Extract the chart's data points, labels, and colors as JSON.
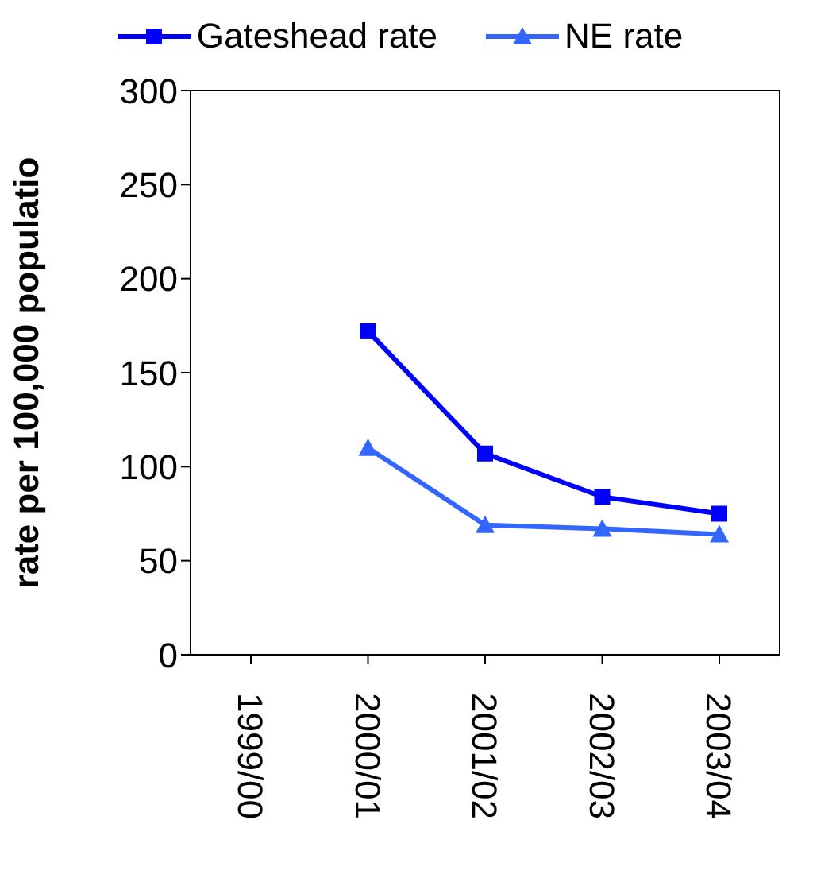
{
  "chart_data": {
    "type": "line",
    "ylabel": "rate per 100,000 populatio",
    "categories": [
      "1999/00",
      "2000/01",
      "2001/02",
      "2002/03",
      "2003/04"
    ],
    "series": [
      {
        "name": "Gateshead rate",
        "color": "#0000ff",
        "marker": "square",
        "values": [
          null,
          172,
          107,
          84,
          75
        ]
      },
      {
        "name": "NE rate",
        "color": "#3366ff",
        "marker": "triangle",
        "values": [
          null,
          110,
          69,
          67,
          64
        ]
      }
    ],
    "ylim": [
      0,
      300
    ],
    "yticks": [
      0,
      50,
      100,
      150,
      200,
      250,
      300
    ],
    "legend": "top",
    "line_style": "solid"
  }
}
